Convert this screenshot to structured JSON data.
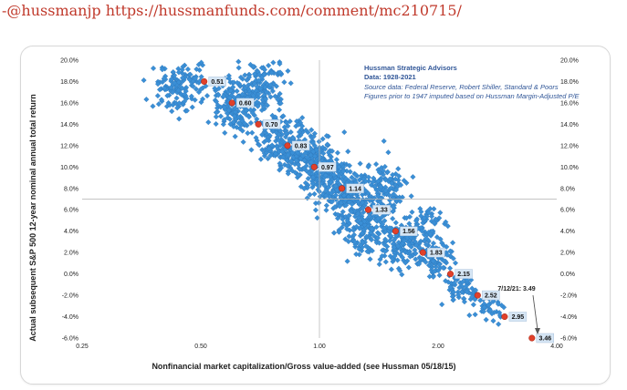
{
  "header": {
    "handle": "-@hussmanjp",
    "url": "https://hussmanfunds.com/comment/mc210715/"
  },
  "chart_data": {
    "type": "scatter",
    "title": "",
    "annotation": {
      "org": "Hussman Strategic Advisors",
      "data_range": "Data: 1928-2021",
      "source1": "Source data: Federal Reserve, Robert Shiller, Standard & Poors",
      "source2": "Figures prior to 1947 imputed based on Hussman Margin-Adjusted P/E"
    },
    "xlabel": "Nonfinancial market capitalization/Gross value-added (see Hussman 05/18/15)",
    "ylabel": "Actual subsequent S&P 500 12-year nominal annual total return",
    "x_scale": "log",
    "xlim": [
      0.25,
      4.0
    ],
    "ylim": [
      -0.06,
      0.2
    ],
    "x_ticks": [
      "0.25",
      "0.50",
      "1.00",
      "2.00",
      "4.00"
    ],
    "y_ticks": [
      "20.0%",
      "18.0%",
      "16.0%",
      "14.0%",
      "12.0%",
      "10.0%",
      "8.0%",
      "6.0%",
      "4.0%",
      "2.0%",
      "0.0%",
      "-2.0%",
      "-4.0%",
      "-6.0%"
    ],
    "y_ticks_right": [
      "20.0%",
      "18.0%",
      "16.0%",
      "14.0%",
      "12.0%",
      "10.0%",
      "8.0%",
      "6.0%",
      "4.0%",
      "2.0%",
      "0.0%",
      "-2.0%",
      "-4.0%",
      "-6.0%"
    ],
    "grid": "center crosshair only",
    "colors": {
      "scatter": "#3a8fd6",
      "marker": "#e0402a",
      "label_box": "#d6e6f5",
      "annotation": "#2f5597"
    },
    "clusters": [
      {
        "cx": 0.45,
        "cy": 0.175,
        "sx": 0.08,
        "sy": 0.01,
        "n": 140
      },
      {
        "cx": 0.62,
        "cy": 0.158,
        "sx": 0.07,
        "sy": 0.012,
        "n": 170
      },
      {
        "cx": 0.72,
        "cy": 0.175,
        "sx": 0.07,
        "sy": 0.012,
        "n": 130
      },
      {
        "cx": 0.8,
        "cy": 0.125,
        "sx": 0.07,
        "sy": 0.012,
        "n": 170
      },
      {
        "cx": 0.95,
        "cy": 0.11,
        "sx": 0.07,
        "sy": 0.012,
        "n": 150
      },
      {
        "cx": 1.05,
        "cy": 0.09,
        "sx": 0.07,
        "sy": 0.013,
        "n": 170
      },
      {
        "cx": 1.2,
        "cy": 0.072,
        "sx": 0.07,
        "sy": 0.013,
        "n": 170
      },
      {
        "cx": 1.45,
        "cy": 0.08,
        "sx": 0.07,
        "sy": 0.014,
        "n": 140
      },
      {
        "cx": 1.3,
        "cy": 0.04,
        "sx": 0.07,
        "sy": 0.012,
        "n": 120
      },
      {
        "cx": 1.6,
        "cy": 0.03,
        "sx": 0.07,
        "sy": 0.012,
        "n": 140
      },
      {
        "cx": 1.85,
        "cy": 0.045,
        "sx": 0.06,
        "sy": 0.01,
        "n": 80
      },
      {
        "cx": 1.95,
        "cy": 0.015,
        "sx": 0.06,
        "sy": 0.008,
        "n": 90
      },
      {
        "cx": 2.3,
        "cy": -0.015,
        "sx": 0.05,
        "sy": 0.008,
        "n": 70
      },
      {
        "cx": 2.7,
        "cy": -0.03,
        "sx": 0.04,
        "sy": 0.007,
        "n": 35
      }
    ],
    "fit_points": [
      {
        "x": 0.51,
        "y": 0.18,
        "label": "0.51"
      },
      {
        "x": 0.6,
        "y": 0.16,
        "label": "0.60"
      },
      {
        "x": 0.7,
        "y": 0.14,
        "label": "0.70"
      },
      {
        "x": 0.83,
        "y": 0.12,
        "label": "0.83"
      },
      {
        "x": 0.97,
        "y": 0.1,
        "label": "0.97"
      },
      {
        "x": 1.14,
        "y": 0.08,
        "label": "1.14"
      },
      {
        "x": 1.33,
        "y": 0.06,
        "label": "1.33"
      },
      {
        "x": 1.56,
        "y": 0.04,
        "label": "1.56"
      },
      {
        "x": 1.83,
        "y": 0.02,
        "label": "1.83"
      },
      {
        "x": 2.15,
        "y": 0.0,
        "label": "2.15"
      },
      {
        "x": 2.52,
        "y": -0.02,
        "label": "2.52"
      },
      {
        "x": 2.95,
        "y": -0.04,
        "label": "2.95"
      },
      {
        "x": 3.46,
        "y": -0.06,
        "label": "3.46"
      }
    ],
    "current": {
      "label": "7/12/21: 3.49",
      "x": 3.49,
      "y": -0.06
    }
  }
}
